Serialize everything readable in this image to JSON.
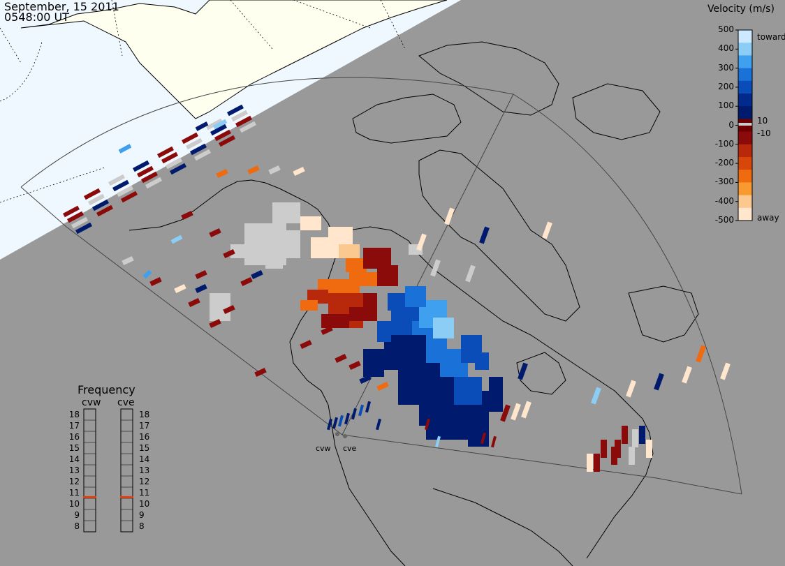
{
  "header": {
    "date": "September, 15 2011",
    "time": "0548:00 UT"
  },
  "colorbar": {
    "title": "Velocity (m/s)",
    "ticks": [
      "500",
      "400",
      "300",
      "200",
      "100",
      "0",
      "-100",
      "-200",
      "-300",
      "-400",
      "-500"
    ],
    "inner_ticks": [
      "10",
      "-10"
    ],
    "toward_label": "toward",
    "away_label": "away",
    "colors": [
      "#cde9ff",
      "#8ccdf5",
      "#3fa0ef",
      "#1a72d9",
      "#0a4cb8",
      "#002a8c",
      "#001a6e",
      "#6e0000",
      "#8b0a0a",
      "#b8280a",
      "#d8460a",
      "#f06a10",
      "#f89a30",
      "#fbc890",
      "#ffe6cc"
    ]
  },
  "frequency": {
    "title": "Frequency",
    "radars": [
      {
        "name": "cvw",
        "value": 10.6
      },
      {
        "name": "cve",
        "value": 10.6
      }
    ],
    "levels": [
      "18",
      "17",
      "16",
      "15",
      "14",
      "13",
      "12",
      "11",
      "10",
      "9",
      "8"
    ]
  },
  "sites": {
    "west": "cvw",
    "east": "cve"
  },
  "colors": {
    "ocean": "#999999",
    "land_sunlit": "#fffff0",
    "sky_day": "#f0f8ff",
    "marker": "#e04010"
  }
}
